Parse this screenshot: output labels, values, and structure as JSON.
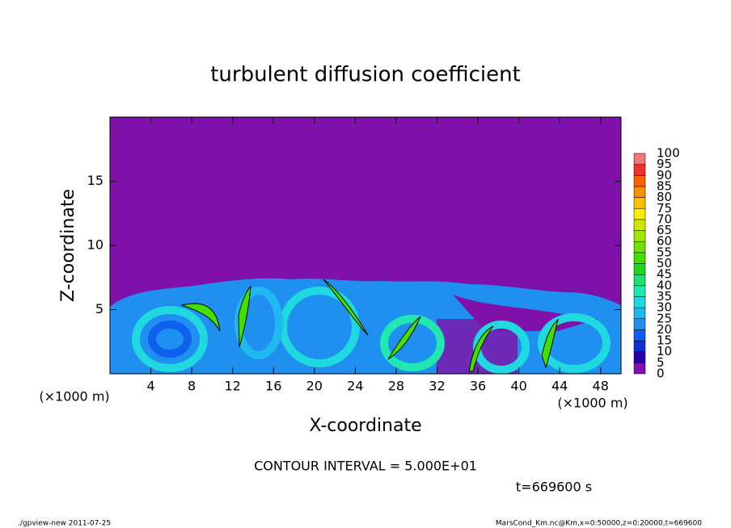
{
  "chart_data": {
    "type": "shaded-field",
    "title": "turbulent diffusion coefficient",
    "x_label": "X-coordinate",
    "y_label": "Z-coordinate",
    "x_unit": "(×1000 m)",
    "y_unit": "(×1000 m)",
    "xlim": [
      0,
      50
    ],
    "ylim": [
      0,
      20
    ],
    "xticks": [
      4,
      8,
      12,
      16,
      20,
      24,
      28,
      32,
      36,
      40,
      44,
      48
    ],
    "yticks": [
      5,
      10,
      15
    ],
    "colorbar": {
      "levels": [
        0,
        5,
        10,
        15,
        20,
        25,
        30,
        35,
        40,
        45,
        50,
        55,
        60,
        65,
        70,
        75,
        80,
        85,
        90,
        95,
        100
      ],
      "colors": [
        "#7f10a9",
        "#2a00a8",
        "#1030d0",
        "#1060f0",
        "#2090f0",
        "#20b8f0",
        "#20d8e0",
        "#20e8b0",
        "#20e070",
        "#20d820",
        "#40e000",
        "#70e000",
        "#a0e800",
        "#d0e800",
        "#f8f000",
        "#f8c000",
        "#f89000",
        "#f86000",
        "#f03030",
        "#f07878"
      ]
    },
    "contour_note": "CONTOUR INTERVAL = 5.000E+01",
    "time_label": "t=669600 s",
    "footer_left": "./gpview-new  2011-07-25",
    "footer_right": "MarsCond_Km.nc@Km,x=0:50000,z=0:20000,t=669600"
  }
}
